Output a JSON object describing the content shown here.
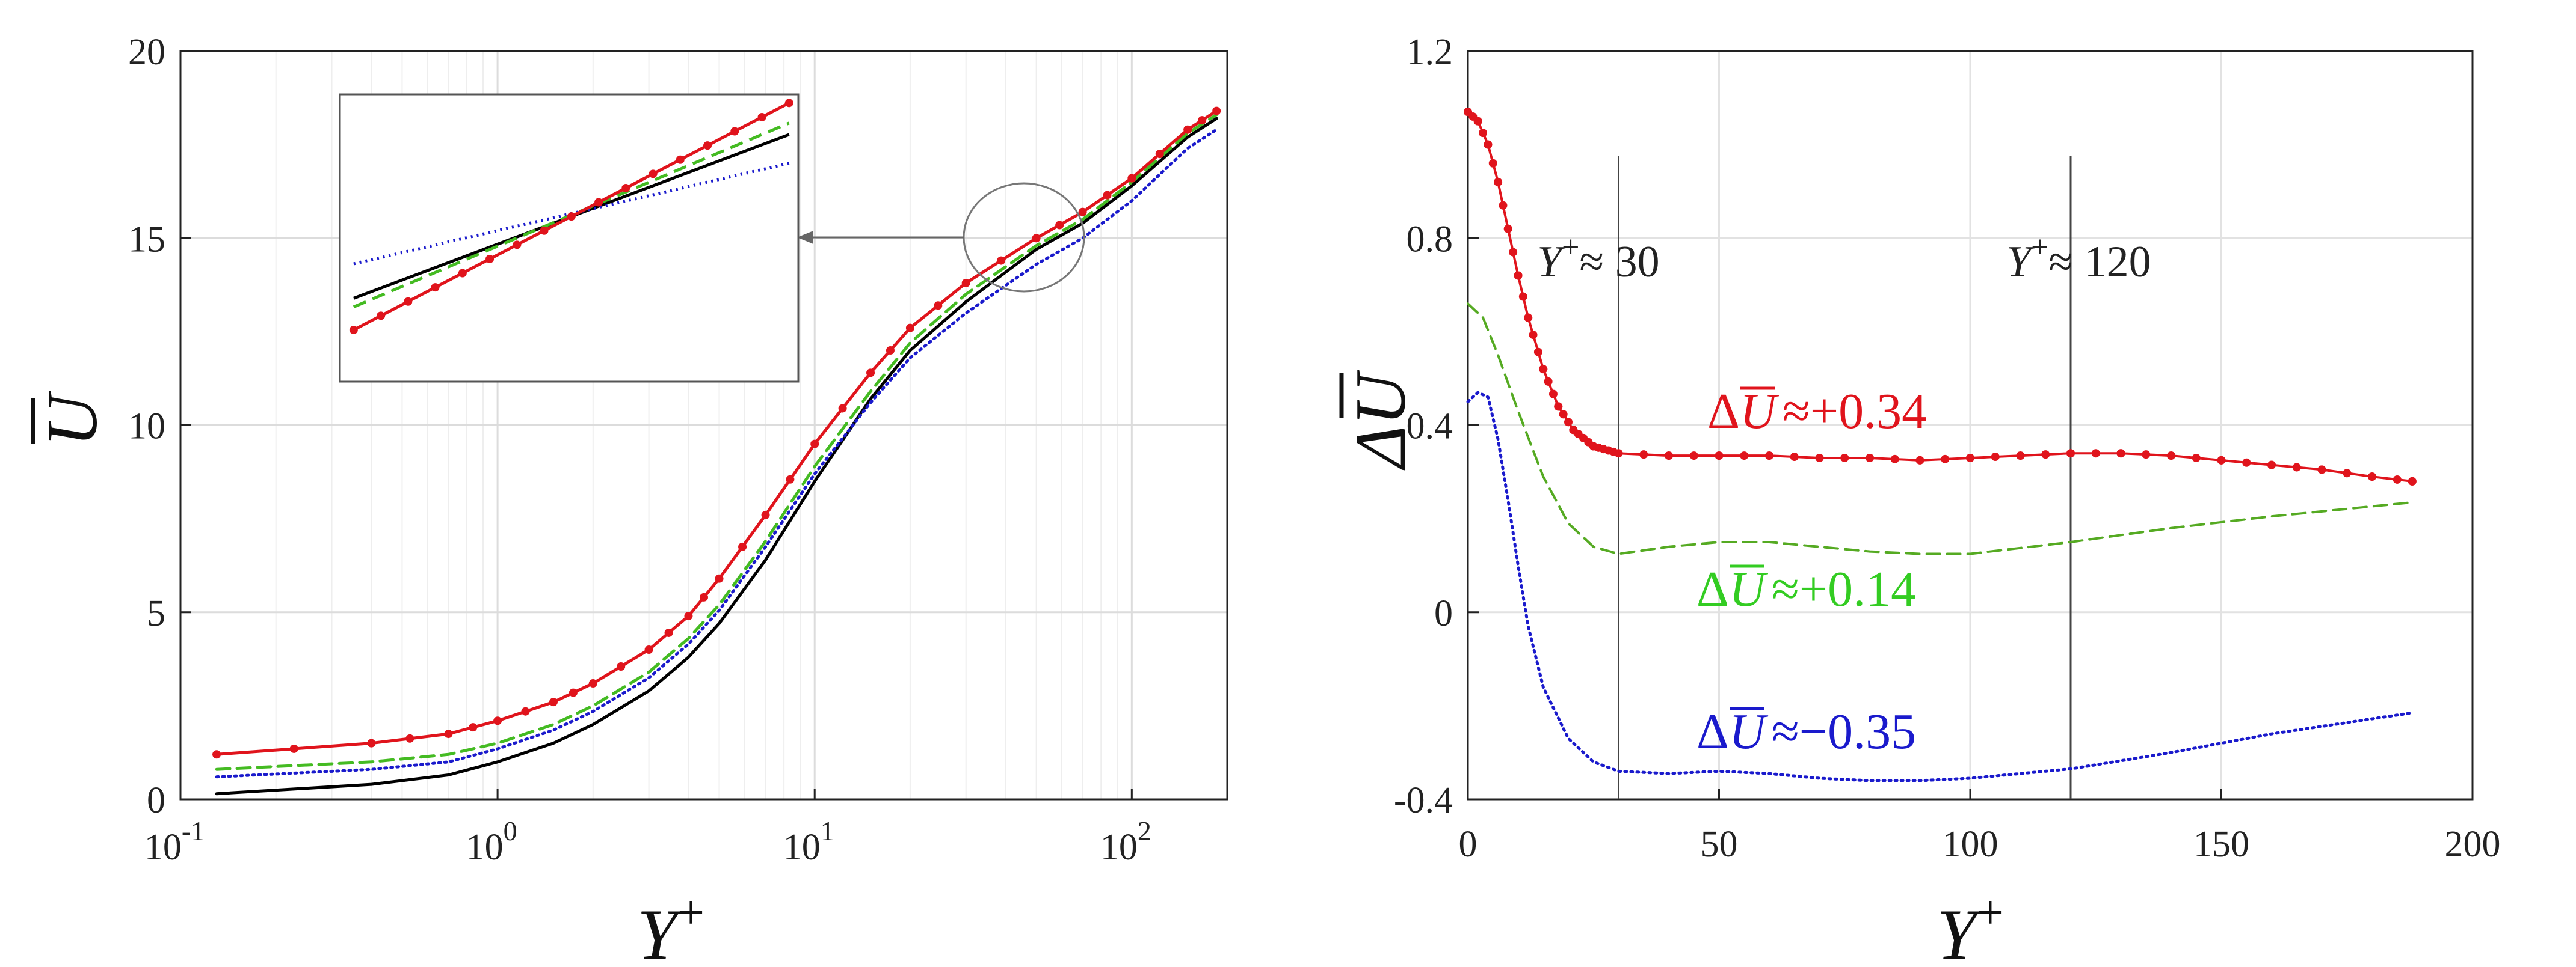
{
  "chart_data": [
    {
      "type": "line",
      "panel": "left",
      "xscale": "log",
      "xlim": [
        0.1,
        200
      ],
      "ylim": [
        0,
        20
      ],
      "xlabel": "Y",
      "xlabel_sup": "+",
      "ylabel": "U",
      "ylabel_overbar": true,
      "xticks": [
        {
          "value": 0.1,
          "base": "10",
          "exp": "-1"
        },
        {
          "value": 1,
          "base": "10",
          "exp": "0"
        },
        {
          "value": 10,
          "base": "10",
          "exp": "1"
        },
        {
          "value": 100,
          "base": "10",
          "exp": "2"
        }
      ],
      "yticks": [
        0,
        5,
        10,
        15,
        20
      ],
      "grid": true,
      "inset": {
        "description": "zoom of ellipse region",
        "x_range": [
          40,
          70
        ],
        "y_range": [
          14.2,
          16.2
        ]
      },
      "series": [
        {
          "name": "red",
          "color": "#e0141c",
          "style": "solid-dots",
          "x": [
            0.13,
            0.4,
            0.7,
            1,
            1.5,
            2,
            3,
            4,
            5,
            7,
            10,
            15,
            20,
            30,
            50,
            70,
            100,
            150,
            185
          ],
          "y": [
            1.2,
            1.5,
            1.75,
            2.1,
            2.6,
            3.1,
            4.0,
            4.9,
            5.9,
            7.6,
            9.5,
            11.4,
            12.6,
            13.8,
            15.0,
            15.7,
            16.6,
            17.9,
            18.4
          ]
        },
        {
          "name": "green",
          "color": "#44bb22",
          "style": "dashed",
          "x": [
            0.13,
            0.4,
            0.7,
            1,
            1.5,
            2,
            3,
            4,
            5,
            7,
            10,
            15,
            20,
            30,
            50,
            70,
            100,
            150,
            185
          ],
          "y": [
            0.8,
            1.0,
            1.2,
            1.5,
            2.0,
            2.5,
            3.4,
            4.3,
            5.2,
            6.9,
            8.9,
            10.9,
            12.2,
            13.5,
            14.8,
            15.5,
            16.5,
            17.8,
            18.3
          ]
        },
        {
          "name": "black",
          "color": "#000000",
          "style": "solid",
          "x": [
            0.13,
            0.4,
            0.7,
            1,
            1.5,
            2,
            3,
            4,
            5,
            7,
            10,
            15,
            20,
            30,
            50,
            70,
            100,
            150,
            185
          ],
          "y": [
            0.15,
            0.4,
            0.65,
            1.0,
            1.5,
            2.0,
            2.9,
            3.8,
            4.7,
            6.4,
            8.5,
            10.7,
            12.0,
            13.3,
            14.7,
            15.4,
            16.4,
            17.7,
            18.2
          ]
        },
        {
          "name": "blue",
          "color": "#1a1acc",
          "style": "dotted",
          "x": [
            0.13,
            0.4,
            0.7,
            1,
            1.5,
            2,
            3,
            4,
            5,
            7,
            10,
            15,
            20,
            30,
            50,
            70,
            100,
            150,
            185
          ],
          "y": [
            0.6,
            0.8,
            1.0,
            1.35,
            1.85,
            2.35,
            3.25,
            4.15,
            5.05,
            6.75,
            8.7,
            10.6,
            11.8,
            13.0,
            14.3,
            15.0,
            16.0,
            17.4,
            17.9
          ]
        }
      ]
    },
    {
      "type": "line",
      "panel": "right",
      "xlim": [
        0,
        200
      ],
      "ylim": [
        -0.4,
        1.2
      ],
      "xlabel": "Y",
      "xlabel_sup": "+",
      "ylabel": "ΔU",
      "ylabel_overbar": true,
      "xticks": [
        0,
        50,
        100,
        150,
        200
      ],
      "yticks": [
        -0.4,
        0,
        0.4,
        0.8,
        1.2
      ],
      "grid": true,
      "vlines": [
        30,
        120
      ],
      "annotations": [
        {
          "text": "Y",
          "sup": "+",
          "rest": "≈ 30"
        },
        {
          "text": "Y",
          "sup": "+",
          "rest": "≈ 120"
        },
        {
          "prefix": "Δ",
          "var": "U",
          "rest": "≈+0.34",
          "color": "#e0141c"
        },
        {
          "prefix": "Δ",
          "var": "U",
          "rest": "≈+0.14",
          "color": "#33cc22"
        },
        {
          "prefix": "Δ",
          "var": "U",
          "rest": "≈−0.35",
          "color": "#1a1acc"
        }
      ],
      "series": [
        {
          "name": "red",
          "color": "#e0141c",
          "style": "solid-dots",
          "x": [
            0,
            2,
            4,
            6,
            8,
            10,
            12,
            15,
            18,
            21,
            25,
            30,
            40,
            50,
            60,
            70,
            80,
            90,
            100,
            110,
            120,
            130,
            140,
            150,
            160,
            170,
            180,
            188
          ],
          "y": [
            1.07,
            1.05,
            1.0,
            0.92,
            0.82,
            0.72,
            0.63,
            0.52,
            0.44,
            0.39,
            0.355,
            0.34,
            0.335,
            0.335,
            0.335,
            0.33,
            0.33,
            0.325,
            0.33,
            0.335,
            0.34,
            0.34,
            0.335,
            0.325,
            0.315,
            0.305,
            0.29,
            0.28
          ]
        },
        {
          "name": "green",
          "color": "#55aa22",
          "style": "dashed",
          "x": [
            0,
            3,
            6,
            10,
            15,
            20,
            25,
            30,
            40,
            50,
            60,
            70,
            80,
            90,
            100,
            120,
            140,
            160,
            188
          ],
          "y": [
            0.66,
            0.63,
            0.55,
            0.43,
            0.29,
            0.19,
            0.14,
            0.125,
            0.14,
            0.15,
            0.15,
            0.14,
            0.13,
            0.125,
            0.125,
            0.15,
            0.18,
            0.205,
            0.235
          ]
        },
        {
          "name": "blue",
          "color": "#1a1acc",
          "style": "dotted",
          "x": [
            0,
            2,
            4,
            6,
            8,
            10,
            12,
            15,
            20,
            25,
            30,
            40,
            50,
            60,
            70,
            80,
            90,
            100,
            110,
            120,
            140,
            160,
            188
          ],
          "y": [
            0.45,
            0.47,
            0.46,
            0.37,
            0.24,
            0.1,
            -0.03,
            -0.16,
            -0.27,
            -0.32,
            -0.34,
            -0.345,
            -0.34,
            -0.345,
            -0.355,
            -0.36,
            -0.36,
            -0.355,
            -0.345,
            -0.335,
            -0.3,
            -0.26,
            -0.215
          ]
        }
      ]
    }
  ]
}
